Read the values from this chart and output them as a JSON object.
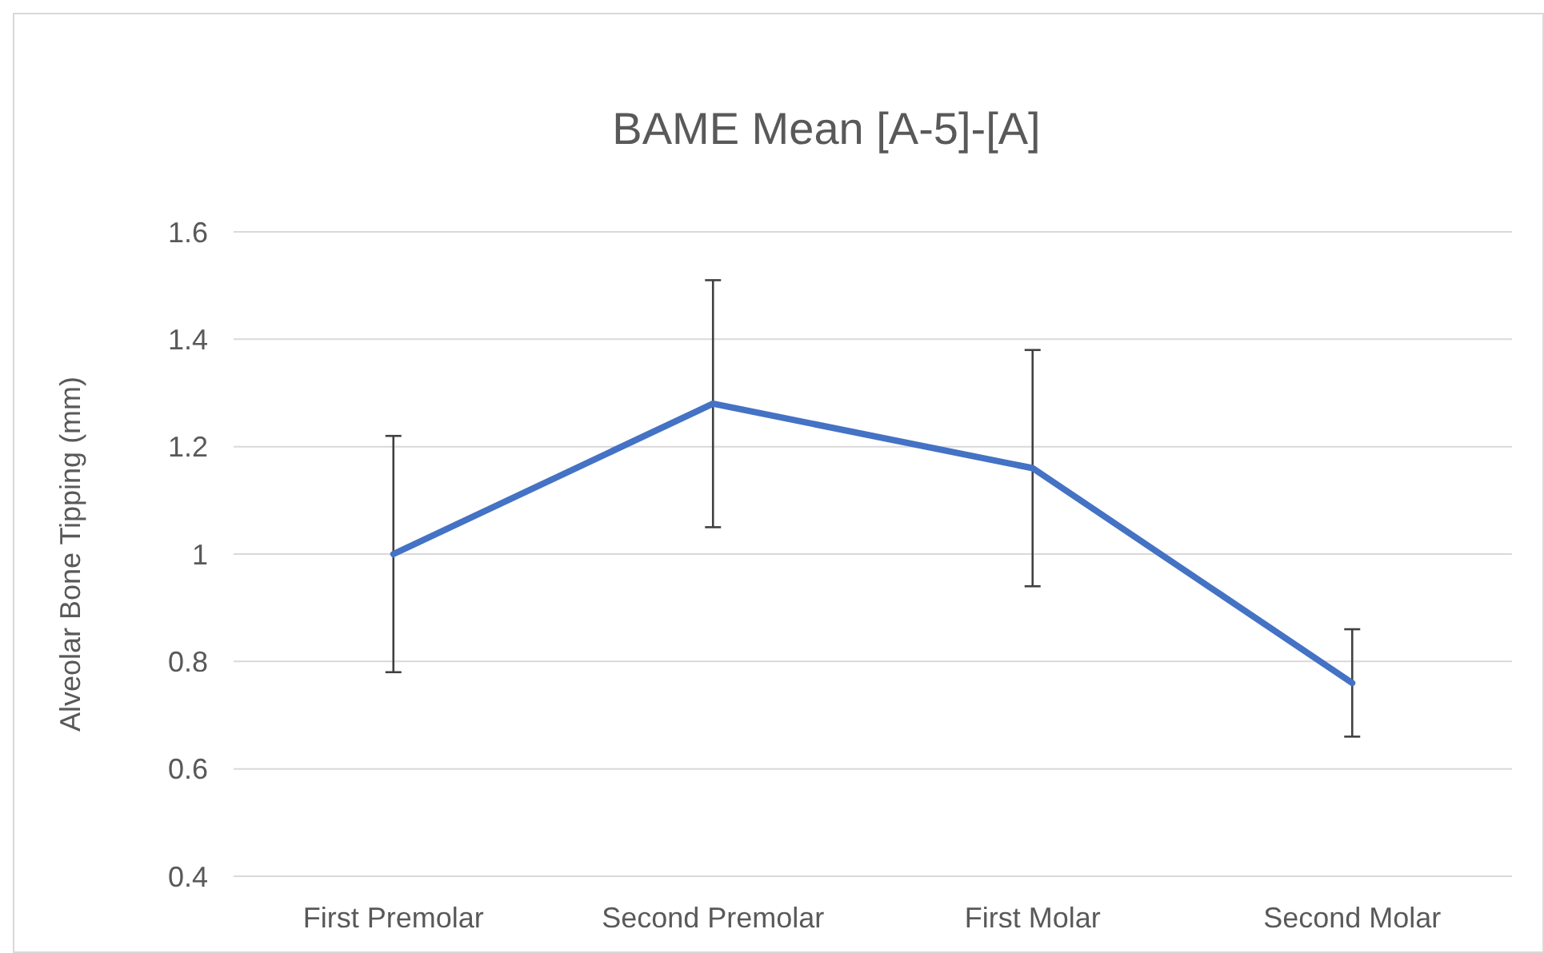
{
  "chart_data": {
    "type": "line",
    "title": "BAME Mean [A-5]-[A]",
    "ylabel": "Alveolar Bone Tipping (mm)",
    "categories": [
      "First Premolar",
      "Second Premolar",
      "First Molar",
      "Second Molar"
    ],
    "series": [
      {
        "color": "#4472c4",
        "values": [
          1.0,
          1.28,
          1.16,
          0.76
        ],
        "errors": [
          0.22,
          0.23,
          0.22,
          0.1
        ]
      }
    ],
    "ylim": [
      0.4,
      1.6
    ],
    "yticks": [
      0.4,
      0.6,
      0.8,
      {
        "value": 1,
        "label": "1"
      },
      1.2,
      1.4,
      1.6
    ],
    "grid": "y",
    "marker": "none",
    "line_style": "solid"
  }
}
